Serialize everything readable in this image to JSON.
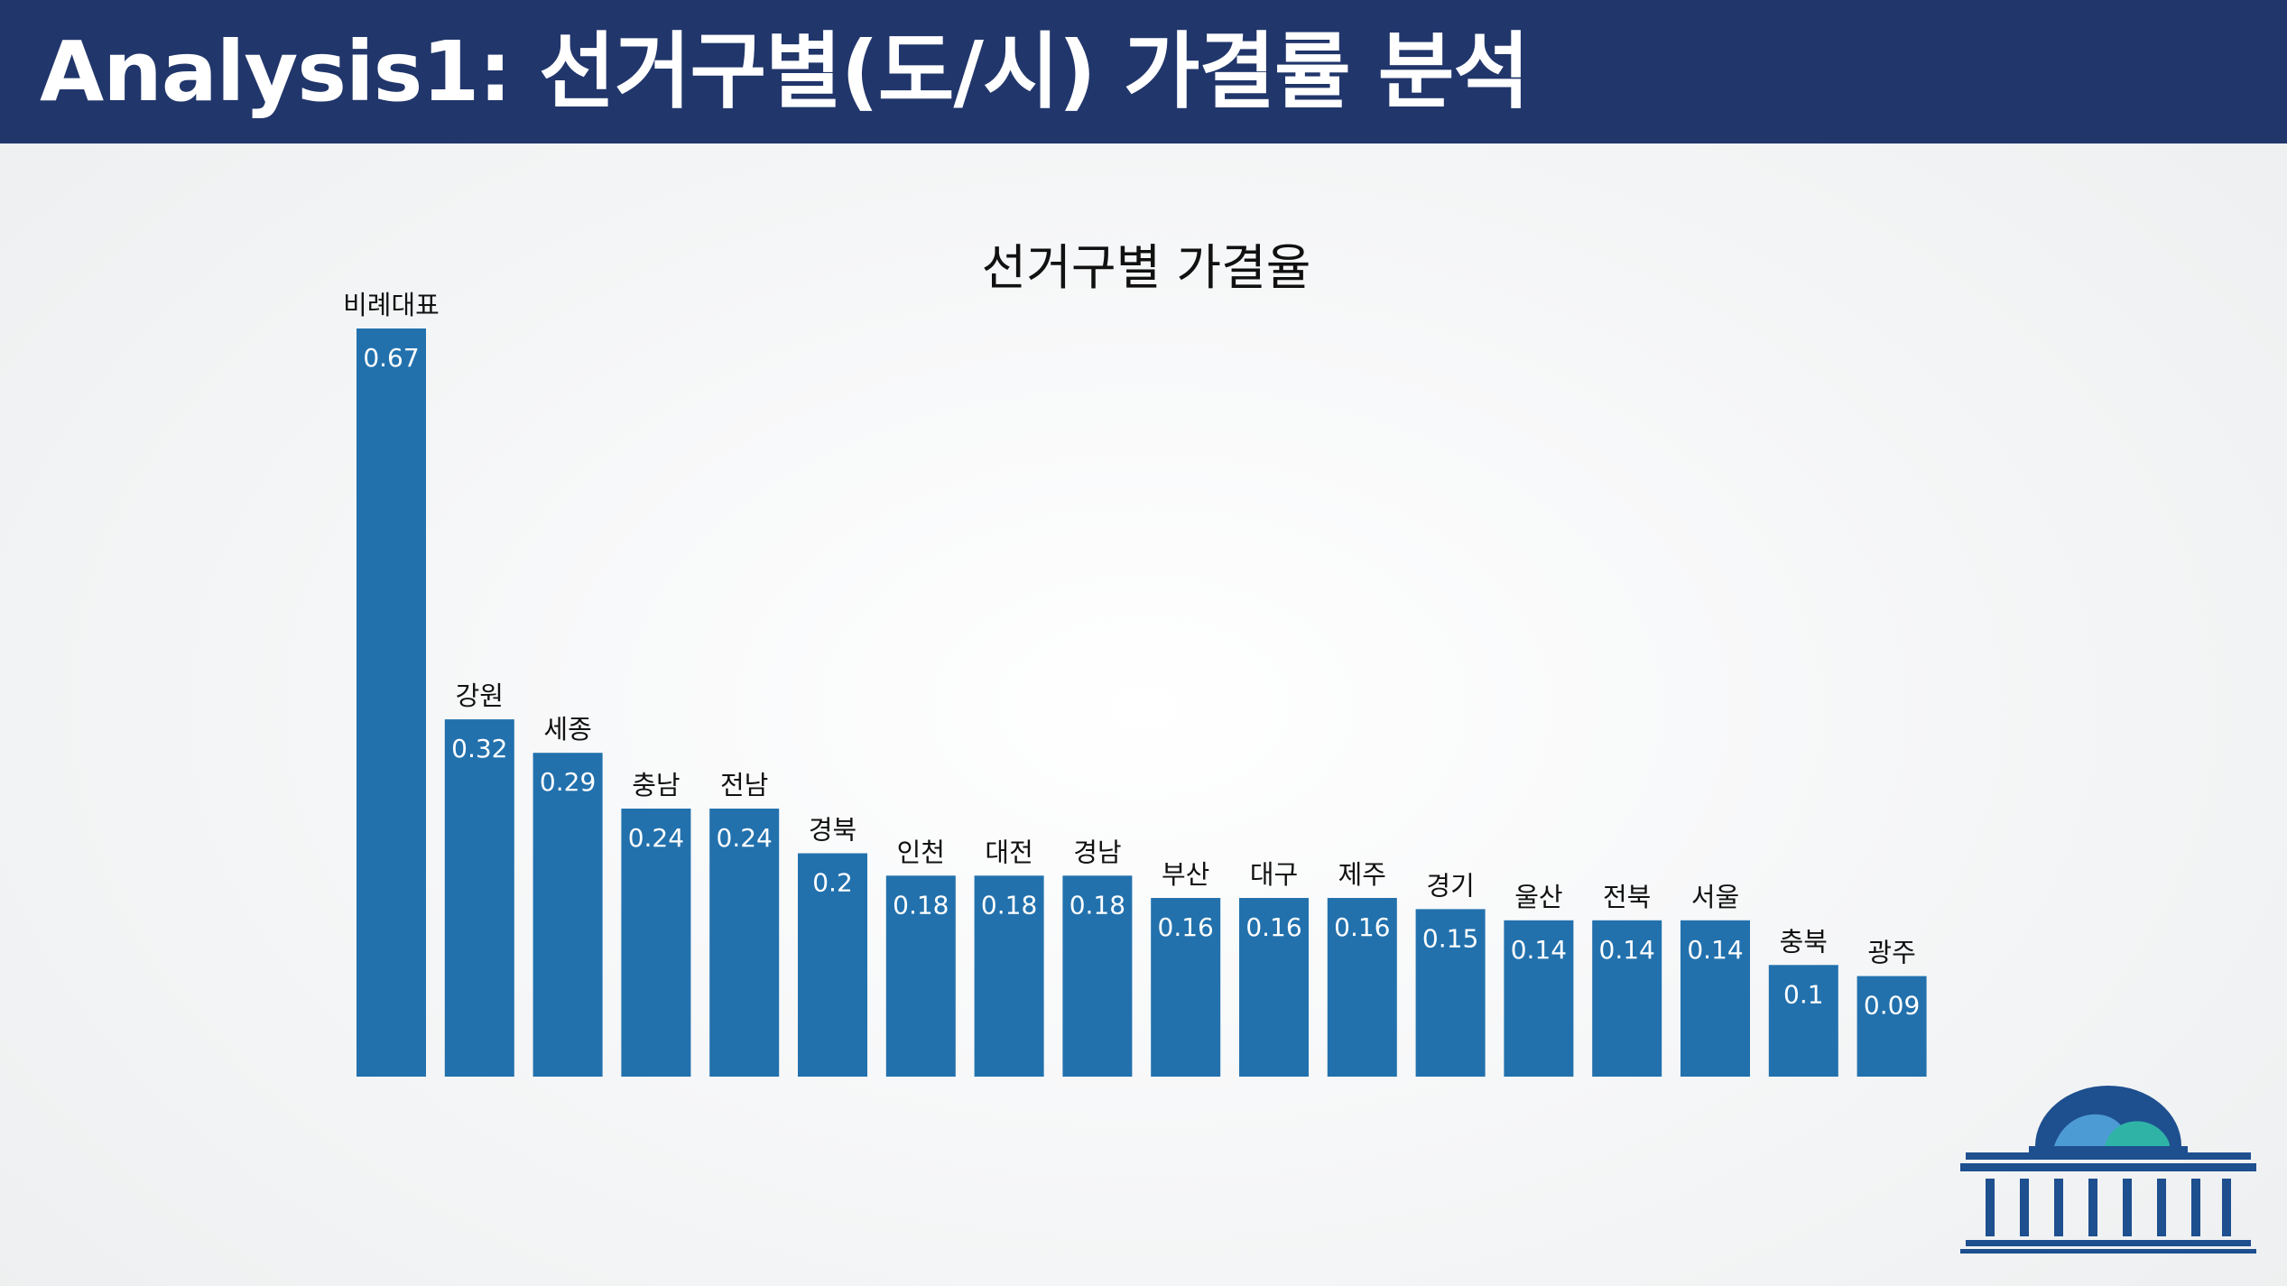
{
  "header": {
    "title": "Analysis1: 선거구별(도/시) 가결률 분석"
  },
  "colors": {
    "header_bg": "#21366b",
    "bar": "#2271ad",
    "logo_blue": "#1e4f8f",
    "logo_light": "#4d9bd5",
    "logo_teal": "#2fb3a7"
  },
  "logo": {
    "icon": "national-assembly-building-icon"
  },
  "chart_data": {
    "type": "bar",
    "title": "선거구별 가결율",
    "xlabel": "",
    "ylabel": "",
    "ylim": [
      0,
      0.67
    ],
    "grid": false,
    "legend": "none",
    "categories": [
      "비례대표",
      "강원",
      "세종",
      "충남",
      "전남",
      "경북",
      "인천",
      "대전",
      "경남",
      "부산",
      "대구",
      "제주",
      "경기",
      "울산",
      "전북",
      "서울",
      "충북",
      "광주"
    ],
    "values": [
      0.67,
      0.32,
      0.29,
      0.24,
      0.24,
      0.2,
      0.18,
      0.18,
      0.18,
      0.16,
      0.16,
      0.16,
      0.15,
      0.14,
      0.14,
      0.14,
      0.1,
      0.09
    ],
    "value_labels": [
      "0.67",
      "0.32",
      "0.29",
      "0.24",
      "0.24",
      "0.2",
      "0.18",
      "0.18",
      "0.18",
      "0.16",
      "0.16",
      "0.16",
      "0.15",
      "0.14",
      "0.14",
      "0.14",
      "0.1",
      "0.09"
    ]
  }
}
